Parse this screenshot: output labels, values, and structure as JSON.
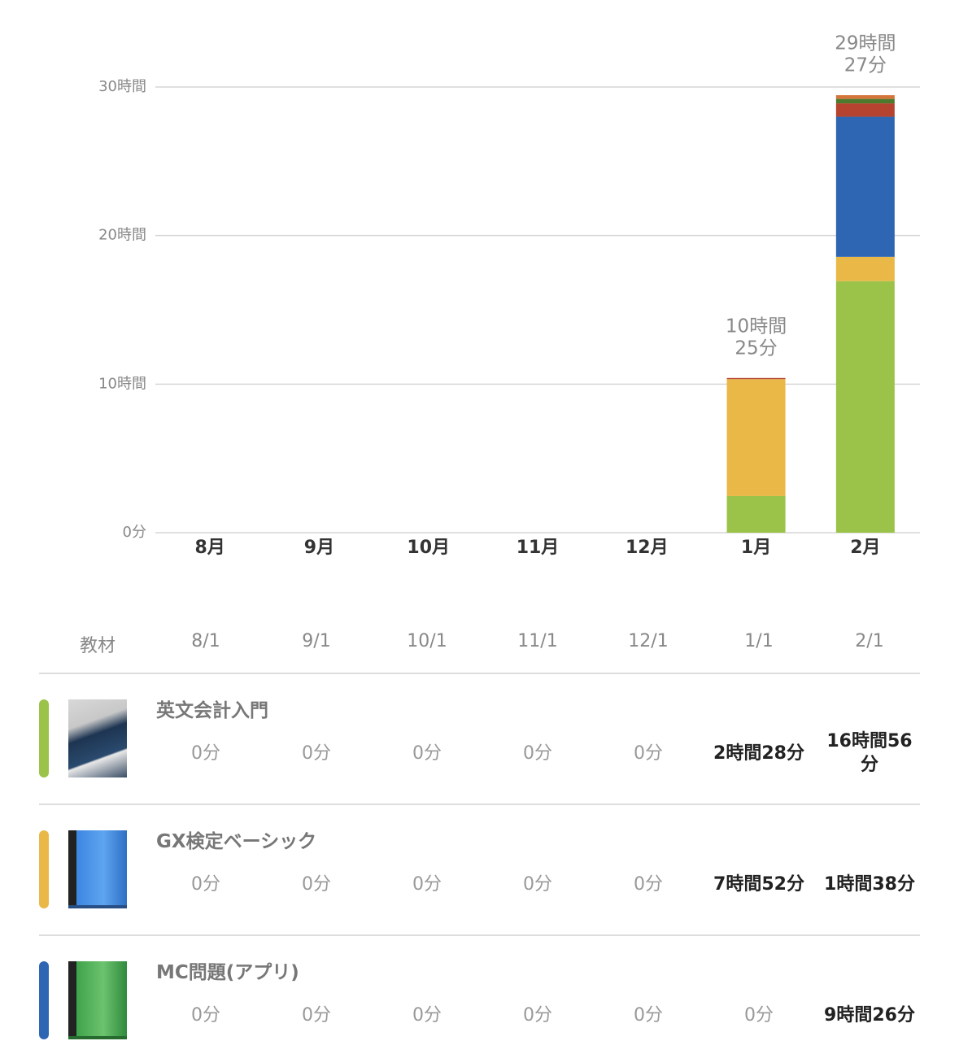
{
  "chart_data": {
    "type": "stacked_bar",
    "categories": [
      "8月",
      "9月",
      "10月",
      "11月",
      "12月",
      "1月",
      "2月"
    ],
    "series": [
      {
        "name": "英文会計入門",
        "color": "#9bc34a",
        "values": [
          0,
          0,
          0,
          0,
          0,
          2.4667,
          16.9333
        ]
      },
      {
        "name": "GX検定ベーシック",
        "color": "#e9b847",
        "values": [
          0,
          0,
          0,
          0,
          0,
          7.8667,
          1.6333
        ]
      },
      {
        "name": "MC問題(アプリ)",
        "color": "#2f66b3",
        "values": [
          0,
          0,
          0,
          0,
          0,
          0,
          9.4333
        ]
      },
      {
        "color": "#b5432f",
        "values": [
          0,
          0,
          0,
          0,
          0,
          0.08,
          0.9
        ]
      },
      {
        "color": "#4e7a2e",
        "values": [
          0,
          0,
          0,
          0,
          0,
          0,
          0.3
        ]
      },
      {
        "color": "#d4763a",
        "values": [
          0,
          0,
          0,
          0,
          0,
          0,
          0.25
        ]
      }
    ],
    "total_labels": [
      null,
      null,
      null,
      null,
      null,
      [
        "10時間",
        "25分"
      ],
      [
        "29時間",
        "27分"
      ]
    ],
    "ylim": [
      0,
      30
    ],
    "yticks": [
      {
        "value": 0,
        "label": "0分"
      },
      {
        "value": 10,
        "label": "10時間"
      },
      {
        "value": 20,
        "label": "20時間"
      },
      {
        "value": 30,
        "label": "30時間"
      }
    ],
    "grid": true
  },
  "table": {
    "header": [
      "教材",
      "8/1",
      "9/1",
      "10/1",
      "11/1",
      "12/1",
      "1/1",
      "2/1"
    ],
    "rows": [
      {
        "name": "英文会計入門",
        "cells": [
          "0分",
          "0分",
          "0分",
          "0分",
          "0分",
          "2時間28分",
          "16時間56分"
        ]
      },
      {
        "name": "GX検定ベーシック",
        "cells": [
          "0分",
          "0分",
          "0分",
          "0分",
          "0分",
          "7時間52分",
          "1時間38分"
        ]
      },
      {
        "name": "MC問題(アプリ)",
        "cells": [
          "0分",
          "0分",
          "0分",
          "0分",
          "0分",
          "0分",
          "9時間26分"
        ]
      }
    ]
  }
}
